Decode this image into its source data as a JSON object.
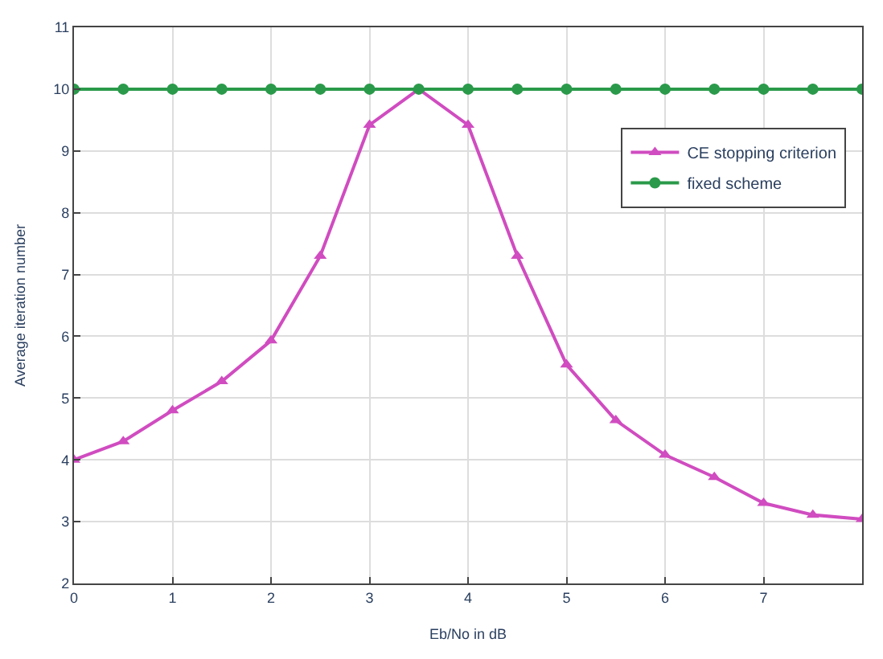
{
  "chart_data": {
    "type": "line",
    "xlabel": "Eb/No in dB",
    "ylabel": "Average iteration number",
    "x": [
      0,
      0.5,
      1,
      1.5,
      2,
      2.5,
      3,
      3.5,
      4,
      4.5,
      5,
      5.5,
      6,
      6.5,
      7,
      7.5,
      8
    ],
    "series": [
      {
        "name": "CE stopping criterion",
        "color": "#d04cc0",
        "marker": "triangle",
        "values": [
          4.0,
          4.3,
          4.8,
          5.27,
          5.93,
          7.3,
          9.42,
          10.0,
          9.42,
          7.3,
          5.54,
          4.64,
          4.08,
          3.72,
          3.3,
          3.11,
          3.04
        ]
      },
      {
        "name": "fixed scheme",
        "color": "#2a9a4a",
        "marker": "circle",
        "values": [
          10,
          10,
          10,
          10,
          10,
          10,
          10,
          10,
          10,
          10,
          10,
          10,
          10,
          10,
          10,
          10,
          10
        ]
      }
    ],
    "xlim": [
      0,
      8
    ],
    "xticks": [
      0,
      1,
      2,
      3,
      4,
      5,
      6,
      7
    ],
    "ylim": [
      2,
      11
    ],
    "yticks": [
      2,
      3,
      4,
      5,
      6,
      7,
      8,
      9,
      10,
      11
    ],
    "grid": true,
    "legend": "top right",
    "line_style": "solid"
  }
}
